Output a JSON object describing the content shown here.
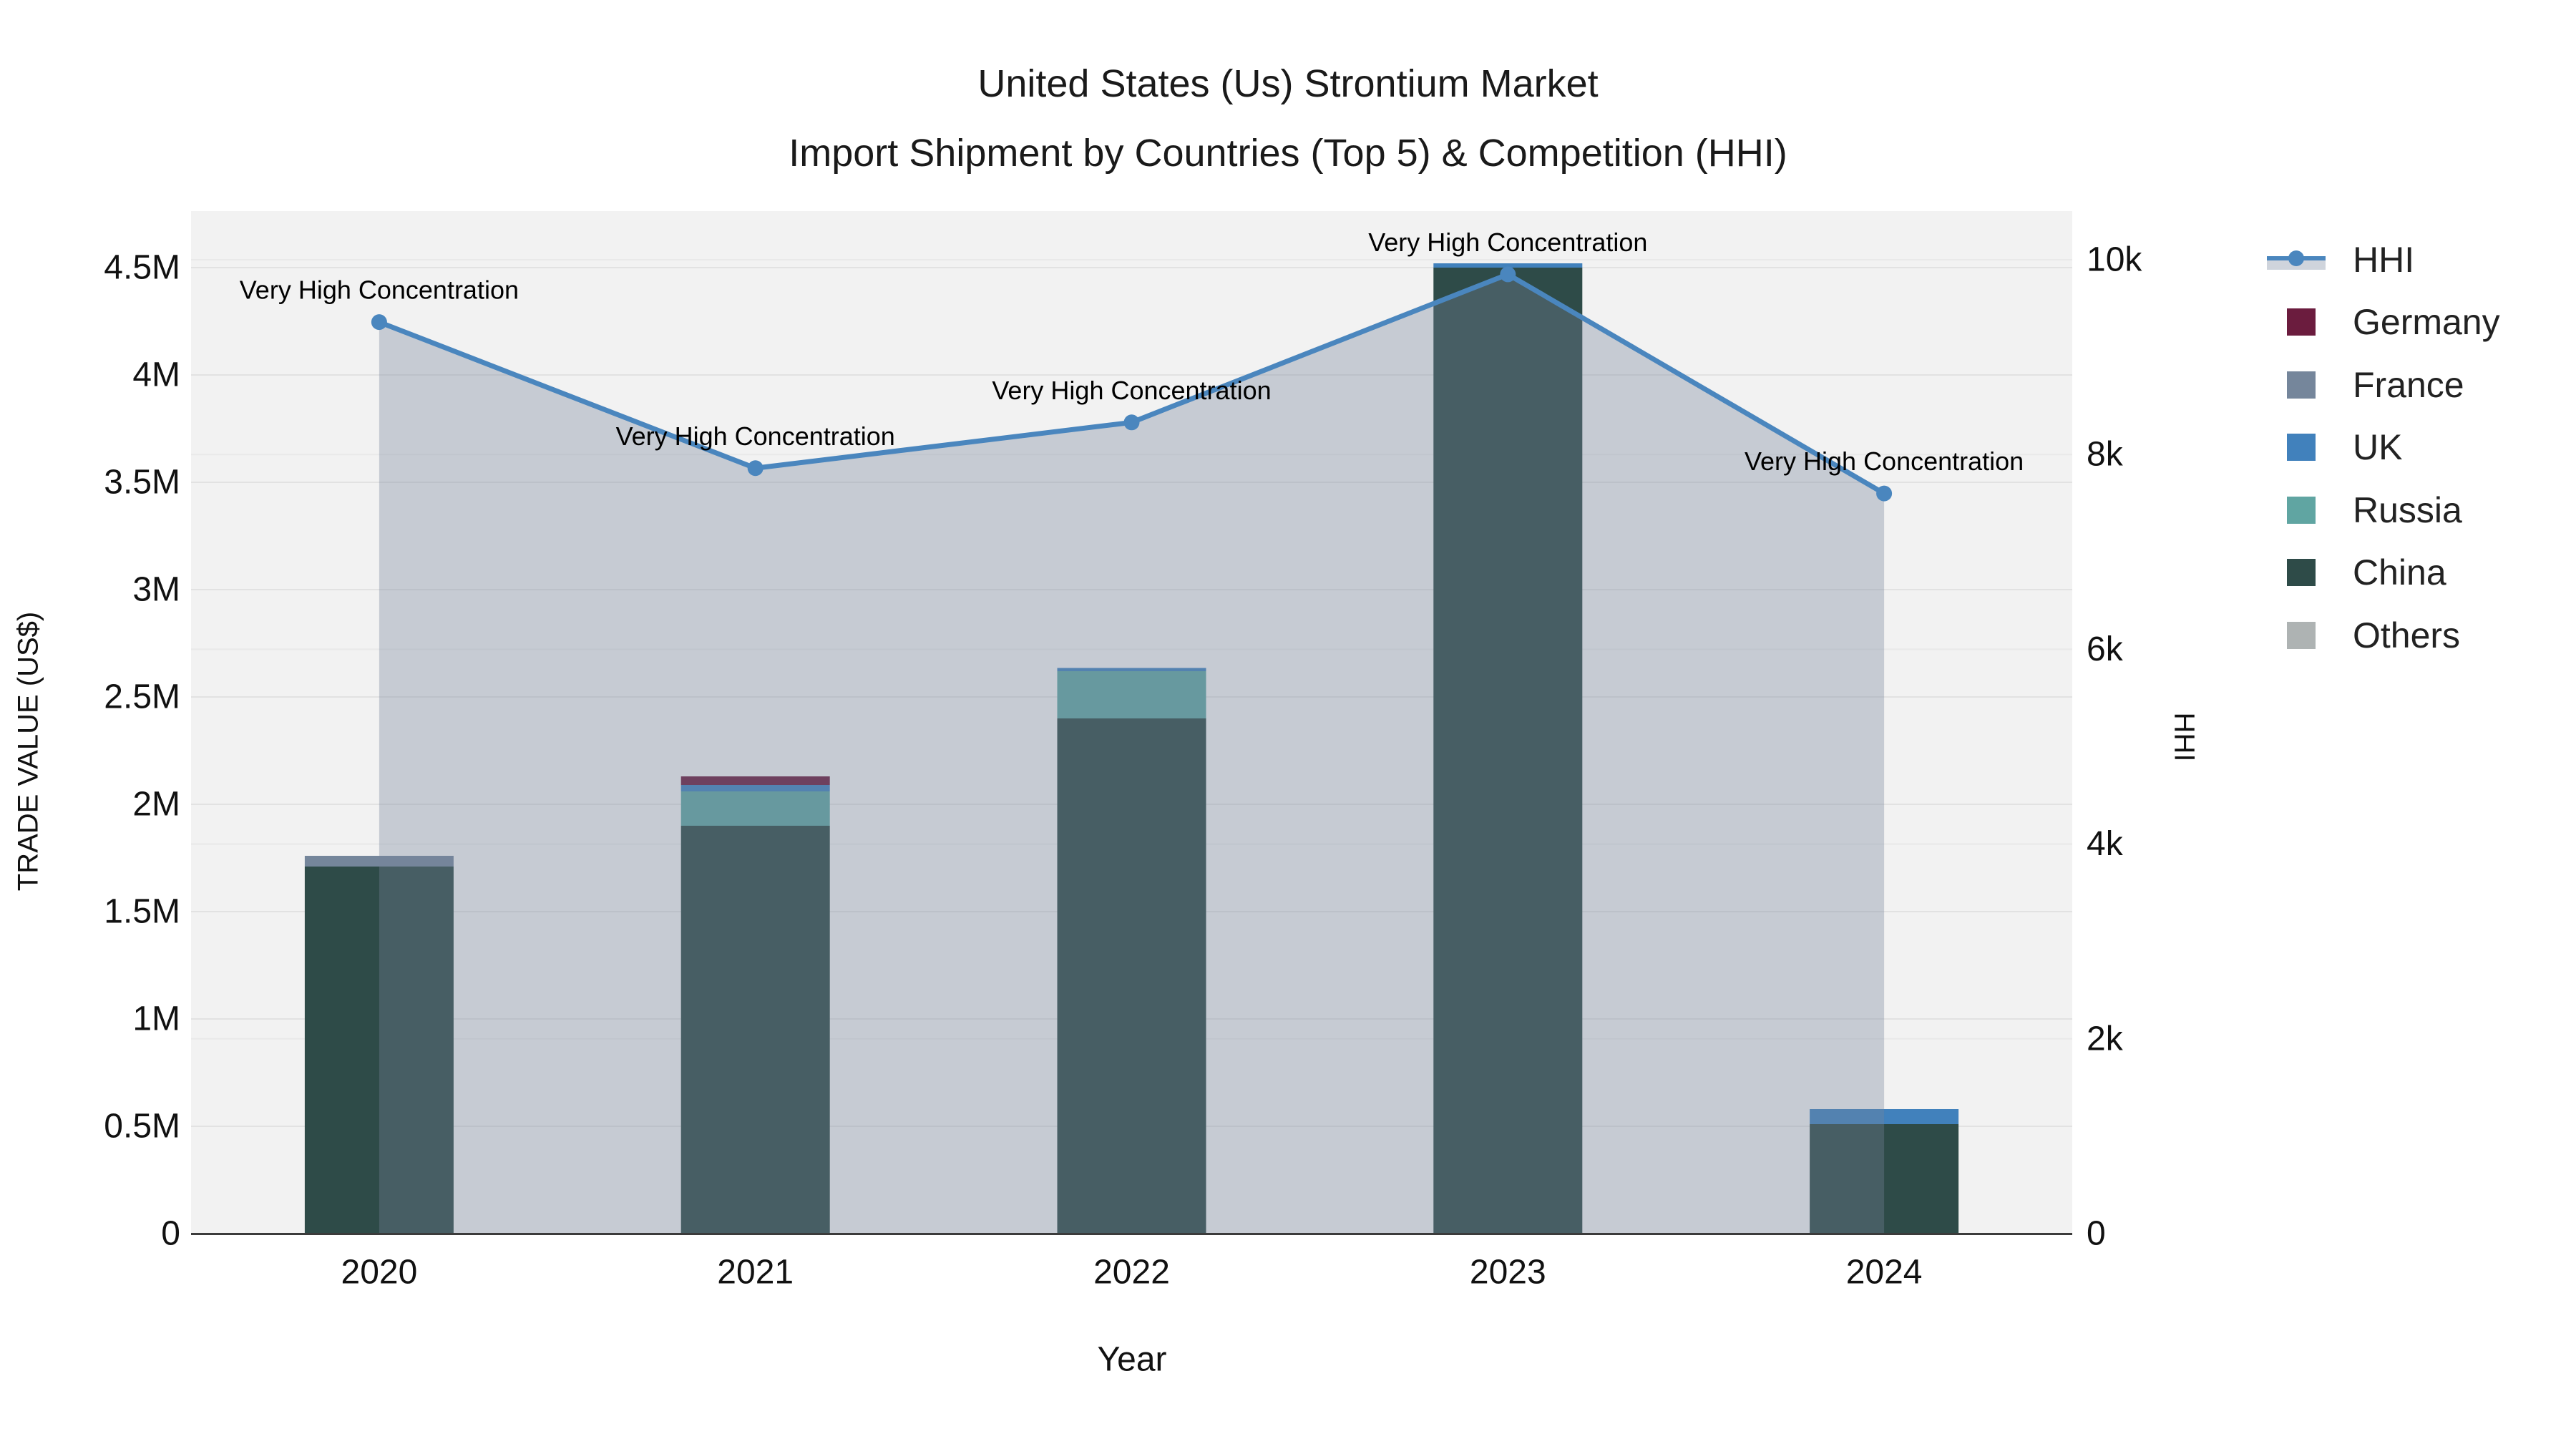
{
  "title": {
    "line1": "United States (Us) Strontium Market",
    "line2": "Import Shipment by Countries (Top 5) & Competition (HHI)"
  },
  "chart_data": {
    "type": "bar+line",
    "categories": [
      "2020",
      "2021",
      "2022",
      "2023",
      "2024"
    ],
    "bar_value_unit": "million US$",
    "bar_series": [
      {
        "name": "China",
        "color": "#2E4B48",
        "values_musd": [
          1.71,
          1.9,
          2.4,
          4.5,
          0.51
        ]
      },
      {
        "name": "Russia",
        "color": "#60A5A2",
        "values_musd": [
          0,
          0.16,
          0.22,
          0,
          0
        ]
      },
      {
        "name": "UK",
        "color": "#4181BC",
        "values_musd": [
          0,
          0.03,
          0.015,
          0.02,
          0.07
        ]
      },
      {
        "name": "France",
        "color": "#75869B",
        "values_musd": [
          0.05,
          0,
          0,
          0,
          0
        ]
      },
      {
        "name": "Germany",
        "color": "#6B1C3E",
        "values_musd": [
          0,
          0.04,
          0,
          0,
          0
        ]
      },
      {
        "name": "Others",
        "color": "#AEB3B3",
        "values_musd": [
          0,
          0,
          0,
          0,
          0
        ]
      }
    ],
    "bar_totals_musd": [
      1.76,
      2.13,
      2.635,
      4.52,
      0.58
    ],
    "line_series": {
      "name": "HHI",
      "color": "#4A86BE",
      "area_fill": "rgba(117,131,155,0.35)",
      "values": [
        9360,
        7860,
        8330,
        9850,
        7600
      ]
    },
    "annotations": [
      {
        "text": "Very High Concentration"
      },
      {
        "text": "Very High Concentration"
      },
      {
        "text": "Very High Concentration"
      },
      {
        "text": "Very High Concentration"
      },
      {
        "text": "Very High Concentration"
      }
    ],
    "xaxis": {
      "title": "Year"
    },
    "yaxis_left": {
      "title": "TRADE VALUE (US$)",
      "tick_values_musd": [
        0,
        0.5,
        1,
        1.5,
        2,
        2.5,
        3,
        3.5,
        4,
        4.5
      ],
      "tick_labels": [
        "0",
        "0.5M",
        "1M",
        "1.5M",
        "2M",
        "2.5M",
        "3M",
        "3.5M",
        "4M",
        "4.5M"
      ],
      "range_musd": [
        0,
        4.76
      ],
      "grid": true
    },
    "yaxis_right": {
      "title": "HHI",
      "tick_values": [
        0,
        2000,
        4000,
        6000,
        8000,
        10000
      ],
      "tick_labels": [
        "0",
        "2k",
        "4k",
        "6k",
        "8k",
        "10k"
      ],
      "range": [
        0,
        10500
      ],
      "grid": true
    },
    "legend": {
      "position": "right",
      "items": [
        {
          "label": "HHI",
          "color": "#4A86BE",
          "type": "line",
          "area_fill": "rgba(117,131,155,0.35)"
        },
        {
          "label": "Germany",
          "color": "#6B1C3E",
          "type": "square"
        },
        {
          "label": "France",
          "color": "#75869B",
          "type": "square"
        },
        {
          "label": "UK",
          "color": "#4181BC",
          "type": "square"
        },
        {
          "label": "Russia",
          "color": "#60A5A2",
          "type": "square"
        },
        {
          "label": "China",
          "color": "#2E4B48",
          "type": "square"
        },
        {
          "label": "Others",
          "color": "#AEB3B3",
          "type": "square"
        }
      ]
    },
    "plot_background": "#F2F2F2",
    "gridline_color": "#E2E2E2",
    "axis_line_color": "#3B3B3B",
    "text_color": "#111111"
  }
}
